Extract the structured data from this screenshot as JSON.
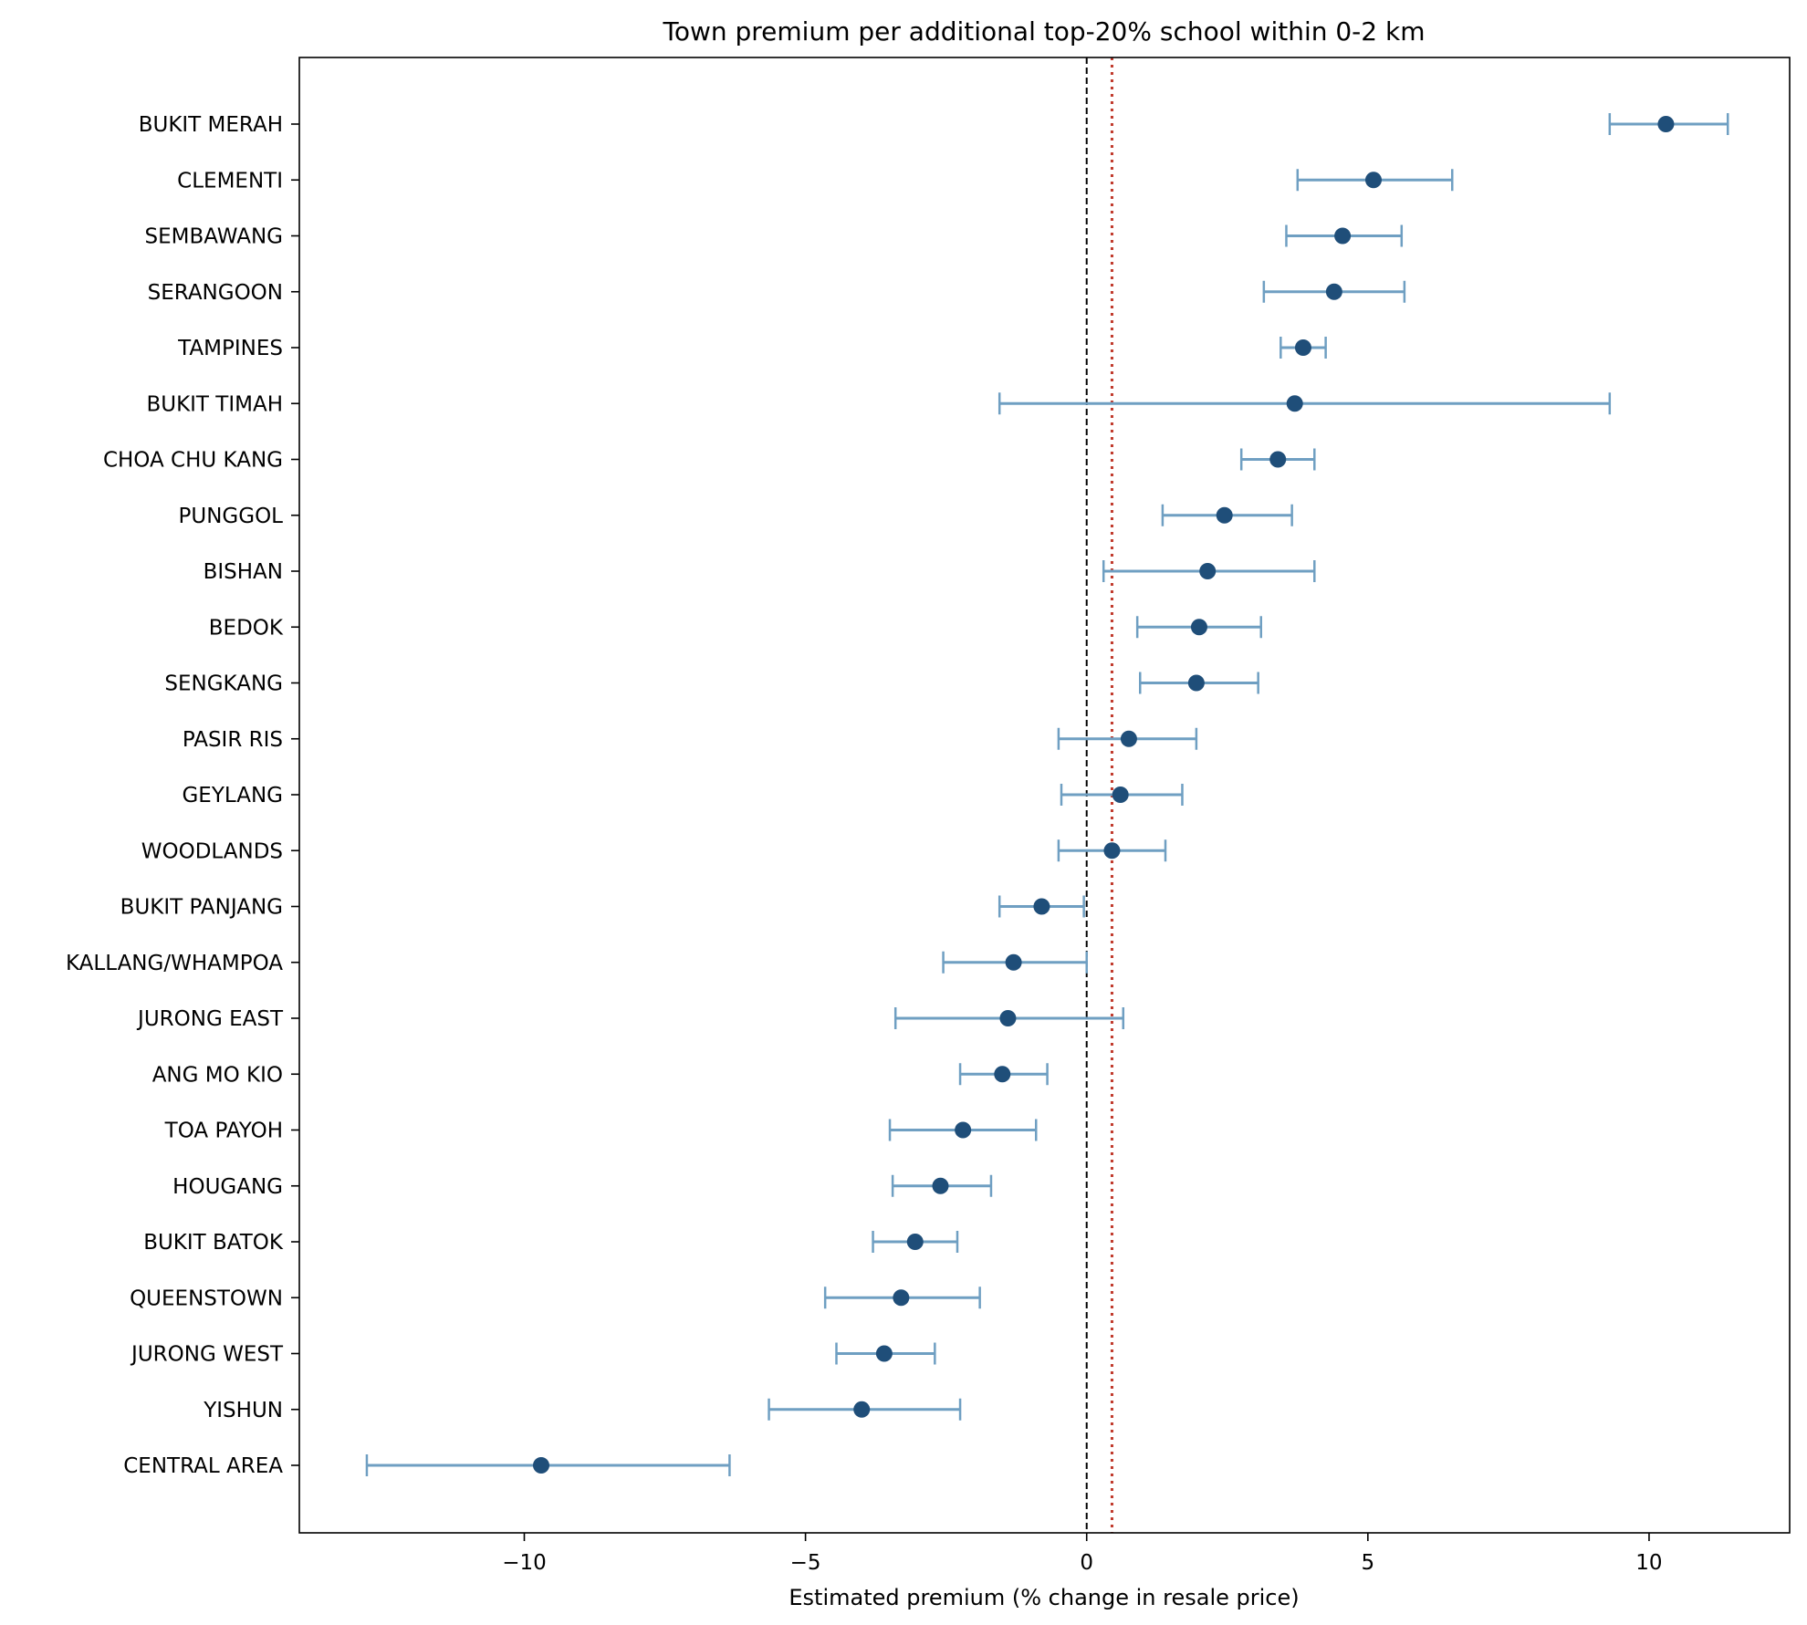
{
  "chart_data": {
    "type": "scatter",
    "subtype": "forest-plot-with-error-bars",
    "title": "Town premium per additional top-20% school within 0-2 km",
    "xlabel": "Estimated premium (% change in resale price)",
    "ylabel": "",
    "xlim": [
      -14.0,
      12.5
    ],
    "xticks": [
      -10,
      -5,
      0,
      5,
      10
    ],
    "xtick_labels": [
      "−10",
      "−5",
      "0",
      "5",
      "10"
    ],
    "grid": false,
    "legend": "none",
    "zero_line": {
      "x": 0,
      "style": "dashed",
      "color": "#000000"
    },
    "reference_line": {
      "x": 0.45,
      "style": "dotted",
      "color": "#c0392b"
    },
    "colors": {
      "point": "#1f4e79",
      "error_bar": "#6f9fc2"
    },
    "categories": [
      "BUKIT MERAH",
      "CLEMENTI",
      "SEMBAWANG",
      "SERANGOON",
      "TAMPINES",
      "BUKIT TIMAH",
      "CHOA CHU KANG",
      "PUNGGOL",
      "BISHAN",
      "BEDOK",
      "SENGKANG",
      "PASIR RIS",
      "GEYLANG",
      "WOODLANDS",
      "BUKIT PANJANG",
      "KALLANG/WHAMPOA",
      "JURONG EAST",
      "ANG MO KIO",
      "TOA PAYOH",
      "HOUGANG",
      "BUKIT BATOK",
      "QUEENSTOWN",
      "JURONG WEST",
      "YISHUN",
      "CENTRAL AREA"
    ],
    "estimate": [
      10.3,
      5.1,
      4.55,
      4.4,
      3.85,
      3.7,
      3.4,
      2.45,
      2.15,
      2.0,
      1.95,
      0.75,
      0.6,
      0.45,
      -0.8,
      -1.3,
      -1.4,
      -1.5,
      -2.2,
      -2.6,
      -3.05,
      -3.3,
      -3.6,
      -4.0,
      -9.7
    ],
    "ci_low": [
      9.3,
      3.75,
      3.55,
      3.15,
      3.45,
      -1.55,
      2.75,
      1.35,
      0.3,
      0.9,
      0.95,
      -0.5,
      -0.45,
      -0.5,
      -1.55,
      -2.55,
      -3.4,
      -2.25,
      -3.5,
      -3.45,
      -3.8,
      -4.65,
      -4.45,
      -5.65,
      -12.8
    ],
    "ci_high": [
      11.4,
      6.5,
      5.6,
      5.65,
      4.25,
      9.3,
      4.05,
      3.65,
      4.05,
      3.1,
      3.05,
      1.95,
      1.7,
      1.4,
      -0.05,
      0.0,
      0.65,
      -0.7,
      -0.9,
      -1.7,
      -2.3,
      -1.9,
      -2.7,
      -2.25,
      -6.35
    ]
  }
}
